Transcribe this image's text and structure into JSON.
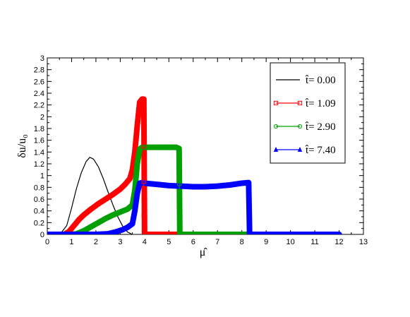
{
  "chart_data": {
    "type": "line",
    "xlabel": "μ̂",
    "ylabel": "δu/u₀",
    "xlim": [
      0,
      13
    ],
    "ylim": [
      0,
      3
    ],
    "xticks": [
      "0",
      "1",
      "2",
      "3",
      "4",
      "5",
      "6",
      "7",
      "8",
      "9",
      "10",
      "11",
      "12",
      "13"
    ],
    "yticks": [
      "0",
      "0.2",
      "0.4",
      "0.6",
      "0.8",
      "1",
      "1.2",
      "1.4",
      "1.6",
      "1.8",
      "2",
      "2.2",
      "2.4",
      "2.6",
      "2.8",
      "3"
    ],
    "grid": false,
    "legend_position": "top-right",
    "series": [
      {
        "name": "t̂= 0.00",
        "color": "#000000",
        "marker": "none",
        "style": "thin",
        "x": [
          0,
          0.3,
          0.5,
          0.8,
          1.0,
          1.2,
          1.4,
          1.6,
          1.75,
          1.9,
          2.1,
          2.3,
          2.5,
          2.7,
          2.9,
          3.1,
          3.3,
          3.5,
          3.7,
          4.0
        ],
        "y": [
          -0.02,
          -0.03,
          -0.01,
          0.15,
          0.45,
          0.78,
          1.05,
          1.24,
          1.31,
          1.28,
          1.15,
          0.95,
          0.72,
          0.5,
          0.3,
          0.14,
          0.04,
          0.0,
          -0.01,
          -0.01
        ]
      },
      {
        "name": "t̂= 1.09",
        "color": "#ff0000",
        "marker": "square",
        "style": "thick",
        "x": [
          0,
          0.3,
          0.5,
          0.7,
          0.9,
          1.1,
          1.3,
          1.5,
          1.8,
          2.1,
          2.4,
          2.7,
          3.0,
          3.2,
          3.4,
          3.5,
          3.6,
          3.7,
          3.8,
          3.9,
          3.97,
          4.0,
          4.2,
          5,
          6,
          7,
          8,
          9,
          10,
          11,
          12
        ],
        "y": [
          0,
          0,
          0,
          0,
          0.05,
          0.15,
          0.25,
          0.33,
          0.43,
          0.52,
          0.6,
          0.68,
          0.77,
          0.85,
          0.95,
          1.1,
          1.4,
          1.85,
          2.25,
          2.3,
          2.3,
          0,
          0,
          0,
          0,
          0,
          0,
          0,
          0,
          0,
          0
        ]
      },
      {
        "name": "t̂= 2.90",
        "color": "#00a000",
        "marker": "circle",
        "style": "thick",
        "x": [
          0,
          0.5,
          1.0,
          1.2,
          1.5,
          1.8,
          2.1,
          2.4,
          2.7,
          3.0,
          3.3,
          3.5,
          3.6,
          3.7,
          3.8,
          3.9,
          4.0,
          4.5,
          5.0,
          5.3,
          5.42,
          5.45,
          6,
          7,
          8,
          9,
          10,
          11,
          12
        ],
        "y": [
          0,
          0,
          0,
          0.01,
          0.06,
          0.13,
          0.2,
          0.27,
          0.33,
          0.38,
          0.43,
          0.5,
          0.75,
          1.2,
          1.45,
          1.48,
          1.48,
          1.48,
          1.48,
          1.48,
          1.46,
          0,
          0,
          0,
          0,
          0,
          0,
          0,
          0
        ]
      },
      {
        "name": "t̂= 7.40",
        "color": "#0000ff",
        "marker": "triangle",
        "style": "thick",
        "x": [
          0,
          1,
          2,
          2.5,
          2.8,
          3.1,
          3.3,
          3.5,
          3.6,
          3.7,
          3.8,
          3.9,
          4.0,
          4.5,
          5.0,
          5.5,
          6.0,
          6.5,
          7.0,
          7.5,
          8.0,
          8.28,
          8.32,
          9,
          10,
          11,
          12
        ],
        "y": [
          0,
          0,
          0,
          0.01,
          0.04,
          0.08,
          0.12,
          0.18,
          0.4,
          0.7,
          0.87,
          0.88,
          0.87,
          0.85,
          0.83,
          0.82,
          0.81,
          0.81,
          0.82,
          0.84,
          0.87,
          0.88,
          0,
          0,
          0,
          0,
          0
        ]
      }
    ],
    "drop_markers": [
      {
        "series": 1,
        "x": 3.97,
        "y": [
          0.32,
          0.6,
          0.9,
          1.2,
          1.5,
          1.85,
          2.0,
          2.05,
          2.1,
          2.15,
          2.2,
          2.25
        ]
      },
      {
        "series": 2,
        "x": 5.43,
        "y": [
          0.08,
          0.45,
          0.85,
          1.2,
          1.32,
          1.38,
          1.42
        ]
      },
      {
        "series": 3,
        "x": 8.31,
        "y": [
          0.05,
          0.3,
          0.6,
          0.72,
          0.77,
          0.8,
          0.83,
          0.86
        ]
      }
    ]
  }
}
